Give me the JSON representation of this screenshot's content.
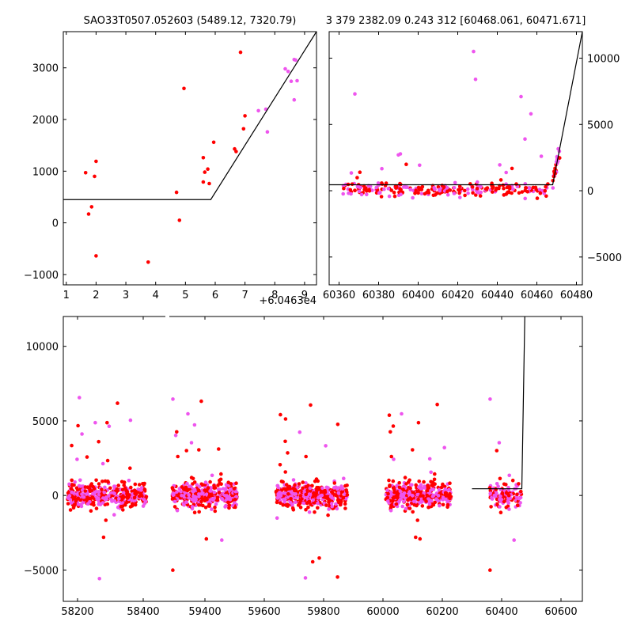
{
  "chart_data": [
    {
      "type": "scatter",
      "title": "SAO33T0507.052603 (5489.12, 7320.79)",
      "offset_label": "+6.0463e4",
      "xlim": [
        0.9,
        9.4
      ],
      "ylim": [
        -1200,
        3700
      ],
      "xticks": [
        1,
        2,
        3,
        4,
        5,
        6,
        7,
        8,
        9
      ],
      "yticks": [
        -1000,
        0,
        1000,
        2000,
        3000
      ],
      "colors": {
        "series_a": "#ff0000",
        "series_b": "#ee55ee",
        "model": "#000000"
      },
      "series": [
        {
          "color": "#ff0000",
          "points": [
            [
              1.65,
              970
            ],
            [
              1.75,
              170
            ],
            [
              1.85,
              310
            ],
            [
              1.95,
              900
            ],
            [
              2.0,
              -640
            ],
            [
              2.0,
              1190
            ],
            [
              3.75,
              -760
            ],
            [
              4.7,
              590
            ],
            [
              4.8,
              50
            ],
            [
              4.95,
              2600
            ],
            [
              5.6,
              1260
            ],
            [
              5.6,
              790
            ],
            [
              5.65,
              980
            ],
            [
              5.75,
              1040
            ],
            [
              5.8,
              760
            ],
            [
              5.95,
              1560
            ],
            [
              6.65,
              1430
            ],
            [
              6.7,
              1380
            ],
            [
              6.85,
              3300
            ],
            [
              6.95,
              1820
            ],
            [
              7.0,
              2070
            ]
          ]
        },
        {
          "color": "#ee55ee",
          "points": [
            [
              7.45,
              2170
            ],
            [
              7.7,
              2200
            ],
            [
              7.75,
              1760
            ],
            [
              8.35,
              2980
            ],
            [
              8.45,
              2930
            ],
            [
              8.55,
              2740
            ],
            [
              8.65,
              3160
            ],
            [
              8.65,
              2380
            ],
            [
              8.7,
              3150
            ],
            [
              8.75,
              2750
            ]
          ]
        }
      ],
      "model": [
        [
          0.9,
          450
        ],
        [
          5.85,
          450
        ],
        [
          9.4,
          3700
        ]
      ]
    },
    {
      "type": "scatter",
      "title": "3 379 2382.09 0.243 312 [60468.061, 60471.671]",
      "xlim": [
        60355,
        60483
      ],
      "ylim": [
        -7100,
        12000
      ],
      "xticks": [
        60360,
        60380,
        60400,
        60420,
        60440,
        60460,
        60480
      ],
      "yticks": [
        -5000,
        0,
        5000,
        10000
      ],
      "model": [
        [
          60355,
          450
        ],
        [
          60468,
          450
        ],
        [
          60483,
          12000
        ]
      ]
    },
    {
      "type": "scatter",
      "title": "",
      "ylim": [
        -7100,
        12000
      ],
      "xticks": [
        58200,
        58400,
        59400,
        59600,
        59800,
        60000,
        60200,
        60400,
        60600
      ],
      "yticks": [
        -5000,
        0,
        5000,
        10000
      ],
      "model": [
        [
          60300,
          450
        ],
        [
          60468,
          450
        ],
        [
          60478,
          12000
        ]
      ]
    }
  ]
}
